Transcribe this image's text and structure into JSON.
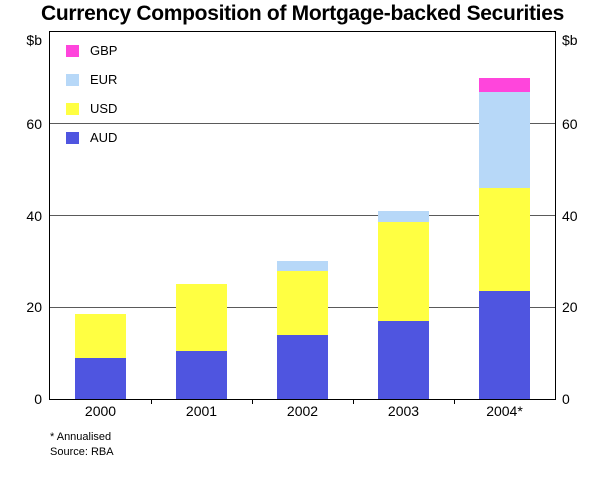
{
  "title": "Currency Composition of Mortgage-backed Securities",
  "y_axis": {
    "unit_left": "$b",
    "unit_right": "$b"
  },
  "footnotes": {
    "annualised": "* Annualised",
    "source": "Source: RBA"
  },
  "chart_data": {
    "type": "bar",
    "stacked": true,
    "title": "Currency Composition of Mortgage-backed Securities",
    "ylabel": "$b",
    "ylim": [
      0,
      80
    ],
    "yticks": [
      0,
      20,
      40,
      60
    ],
    "grid": true,
    "legend_position": "top-left",
    "legend_order": [
      "GBP",
      "EUR",
      "USD",
      "AUD"
    ],
    "categories": [
      "2000",
      "2001",
      "2002",
      "2003",
      "2004*"
    ],
    "series": [
      {
        "name": "AUD",
        "color": "#4F55E0",
        "values": [
          9,
          10.5,
          14,
          17,
          23.5
        ]
      },
      {
        "name": "USD",
        "color": "#FFFF42",
        "values": [
          9.5,
          14.5,
          14,
          21.5,
          22.5
        ]
      },
      {
        "name": "EUR",
        "color": "#B7D8F8",
        "values": [
          0,
          0,
          2,
          2.5,
          21
        ]
      },
      {
        "name": "GBP",
        "color": "#FF45DC",
        "values": [
          0,
          0,
          0,
          0,
          3
        ]
      }
    ],
    "totals": [
      18.5,
      25,
      30,
      41,
      70
    ],
    "footnote": "* Annualised",
    "source": "RBA",
    "colors": {
      "grid": "#5a5a5a",
      "frame": "#000000",
      "background": "#ffffff"
    }
  }
}
